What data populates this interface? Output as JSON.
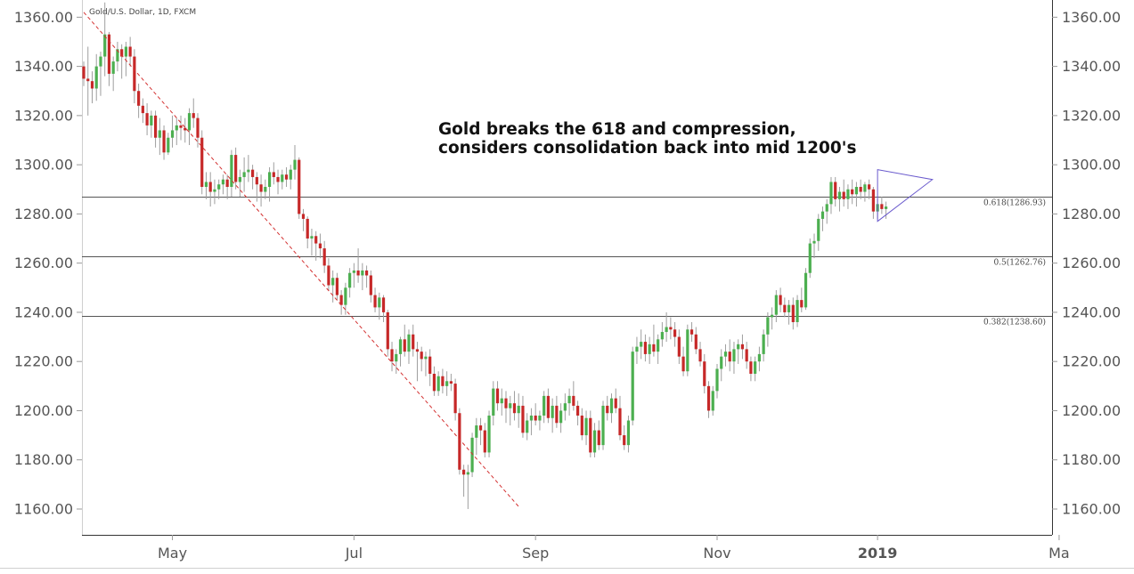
{
  "chart_data": {
    "type": "candlestick",
    "title": "Gold/U.S. Dollar, 1D, FXCM",
    "annotation_lines": [
      "Gold breaks the 618 and compression,",
      "considers consolidation back into mid 1200's"
    ],
    "x_tick_labels": [
      "May",
      "Jul",
      "Sep",
      "Nov",
      "2019",
      "Ma"
    ],
    "y_tick_labels": [
      "1360.00",
      "1340.00",
      "1320.00",
      "1300.00",
      "1280.00",
      "1260.00",
      "1240.00",
      "1220.00",
      "1200.00",
      "1180.00",
      "1160.00"
    ],
    "y_ticks": [
      1360,
      1340,
      1320,
      1300,
      1280,
      1260,
      1240,
      1220,
      1200,
      1180,
      1160
    ],
    "ylim": [
      1149.5,
      1367
    ],
    "fib_levels": [
      {
        "label": "0.618(1286.93)",
        "value": 1286.93
      },
      {
        "label": "0.5(1262.76)",
        "value": 1262.76
      },
      {
        "label": "0.382(1238.60)",
        "value": 1238.6
      }
    ],
    "trendline": {
      "from": {
        "bar": 0,
        "price": 1362
      },
      "to": {
        "bar": 103,
        "price": 1161
      }
    },
    "triangle": [
      {
        "bar": 188,
        "price": 1298
      },
      {
        "bar": 201,
        "price": 1294
      },
      {
        "bar": 188,
        "price": 1277
      }
    ],
    "month_ticks": [
      {
        "label": "May",
        "bar": 21,
        "bold": false
      },
      {
        "label": "Jul",
        "bar": 64,
        "bold": false
      },
      {
        "label": "Sep",
        "bar": 107,
        "bold": false
      },
      {
        "label": "Nov",
        "bar": 150,
        "bold": false
      },
      {
        "label": "2019",
        "bar": 188,
        "bold": true
      },
      {
        "label": "Ma",
        "bar": 231,
        "bold": false
      }
    ],
    "colors": {
      "up": "#4caf50",
      "down": "#c62828",
      "wick": "#9e9e9e",
      "grid": "#555555",
      "trend": "#d32f2f",
      "triangle": "#6a5acd"
    },
    "ohlc": [
      [
        1340,
        1342,
        1332,
        1335
      ],
      [
        1335,
        1348,
        1320,
        1334
      ],
      [
        1334,
        1338,
        1325,
        1331
      ],
      [
        1331,
        1345,
        1326,
        1340
      ],
      [
        1340,
        1346,
        1328,
        1344
      ],
      [
        1344,
        1366,
        1336,
        1353
      ],
      [
        1353,
        1354,
        1332,
        1337
      ],
      [
        1337,
        1344,
        1330,
        1342
      ],
      [
        1342,
        1350,
        1338,
        1347
      ],
      [
        1347,
        1349,
        1335,
        1344
      ],
      [
        1344,
        1350,
        1336,
        1348
      ],
      [
        1348,
        1352,
        1340,
        1344
      ],
      [
        1344,
        1347,
        1325,
        1330
      ],
      [
        1330,
        1333,
        1319,
        1324
      ],
      [
        1324,
        1327,
        1317,
        1321
      ],
      [
        1321,
        1325,
        1312,
        1316
      ],
      [
        1316,
        1322,
        1311,
        1320
      ],
      [
        1320,
        1322,
        1307,
        1311
      ],
      [
        1311,
        1319,
        1304,
        1314
      ],
      [
        1314,
        1316,
        1302,
        1305
      ],
      [
        1305,
        1313,
        1304,
        1311
      ],
      [
        1311,
        1320,
        1307,
        1314
      ],
      [
        1314,
        1319,
        1308,
        1316
      ],
      [
        1316,
        1320,
        1310,
        1315
      ],
      [
        1315,
        1319,
        1309,
        1314
      ],
      [
        1314,
        1323,
        1308,
        1321
      ],
      [
        1321,
        1327,
        1315,
        1319
      ],
      [
        1319,
        1321,
        1307,
        1311
      ],
      [
        1311,
        1314,
        1288,
        1291
      ],
      [
        1291,
        1297,
        1286,
        1293
      ],
      [
        1293,
        1297,
        1283,
        1289
      ],
      [
        1289,
        1294,
        1284,
        1290
      ],
      [
        1290,
        1294,
        1286,
        1292
      ],
      [
        1292,
        1296,
        1288,
        1294
      ],
      [
        1294,
        1296,
        1286,
        1291
      ],
      [
        1291,
        1306,
        1287,
        1304
      ],
      [
        1304,
        1307,
        1290,
        1293
      ],
      [
        1293,
        1298,
        1287,
        1295
      ],
      [
        1295,
        1303,
        1289,
        1297
      ],
      [
        1297,
        1304,
        1293,
        1298
      ],
      [
        1298,
        1300,
        1290,
        1295
      ],
      [
        1295,
        1297,
        1285,
        1292
      ],
      [
        1292,
        1296,
        1283,
        1289
      ],
      [
        1289,
        1294,
        1286,
        1291
      ],
      [
        1291,
        1299,
        1285,
        1297
      ],
      [
        1297,
        1301,
        1292,
        1295
      ],
      [
        1295,
        1298,
        1288,
        1293
      ],
      [
        1293,
        1298,
        1290,
        1296
      ],
      [
        1296,
        1299,
        1291,
        1294
      ],
      [
        1294,
        1300,
        1290,
        1298
      ],
      [
        1298,
        1308,
        1294,
        1302
      ],
      [
        1302,
        1303,
        1278,
        1280
      ],
      [
        1280,
        1282,
        1273,
        1278
      ],
      [
        1278,
        1279,
        1266,
        1270
      ],
      [
        1270,
        1274,
        1263,
        1271
      ],
      [
        1271,
        1273,
        1261,
        1268
      ],
      [
        1268,
        1272,
        1262,
        1266
      ],
      [
        1266,
        1269,
        1256,
        1259
      ],
      [
        1259,
        1262,
        1249,
        1251
      ],
      [
        1251,
        1257,
        1244,
        1254
      ],
      [
        1254,
        1256,
        1245,
        1247
      ],
      [
        1247,
        1249,
        1239,
        1243
      ],
      [
        1243,
        1252,
        1239,
        1250
      ],
      [
        1250,
        1258,
        1246,
        1256
      ],
      [
        1256,
        1260,
        1250,
        1257
      ],
      [
        1257,
        1266,
        1252,
        1255
      ],
      [
        1255,
        1260,
        1249,
        1257
      ],
      [
        1257,
        1259,
        1250,
        1255
      ],
      [
        1255,
        1257,
        1244,
        1247
      ],
      [
        1247,
        1250,
        1240,
        1242
      ],
      [
        1242,
        1248,
        1237,
        1246
      ],
      [
        1246,
        1247,
        1236,
        1240
      ],
      [
        1240,
        1241,
        1222,
        1225
      ],
      [
        1225,
        1228,
        1216,
        1220
      ],
      [
        1220,
        1225,
        1215,
        1223
      ],
      [
        1223,
        1230,
        1218,
        1229
      ],
      [
        1229,
        1235,
        1222,
        1224
      ],
      [
        1224,
        1233,
        1219,
        1231
      ],
      [
        1231,
        1235,
        1222,
        1225
      ],
      [
        1225,
        1228,
        1212,
        1224
      ],
      [
        1224,
        1226,
        1216,
        1221
      ],
      [
        1221,
        1224,
        1214,
        1222
      ],
      [
        1222,
        1225,
        1210,
        1215
      ],
      [
        1215,
        1218,
        1206,
        1208
      ],
      [
        1208,
        1216,
        1206,
        1214
      ],
      [
        1214,
        1217,
        1207,
        1210
      ],
      [
        1210,
        1216,
        1206,
        1212
      ],
      [
        1212,
        1215,
        1208,
        1211
      ],
      [
        1211,
        1213,
        1196,
        1199
      ],
      [
        1199,
        1201,
        1174,
        1176
      ],
      [
        1176,
        1178,
        1165,
        1174
      ],
      [
        1174,
        1178,
        1160,
        1175
      ],
      [
        1175,
        1191,
        1173,
        1189
      ],
      [
        1189,
        1197,
        1182,
        1194
      ],
      [
        1194,
        1197,
        1186,
        1192
      ],
      [
        1192,
        1195,
        1181,
        1183
      ],
      [
        1183,
        1200,
        1181,
        1198
      ],
      [
        1198,
        1212,
        1194,
        1209
      ],
      [
        1209,
        1212,
        1200,
        1203
      ],
      [
        1203,
        1209,
        1198,
        1205
      ],
      [
        1205,
        1208,
        1195,
        1201
      ],
      [
        1201,
        1206,
        1194,
        1203
      ],
      [
        1203,
        1208,
        1196,
        1199
      ],
      [
        1199,
        1207,
        1193,
        1202
      ],
      [
        1202,
        1206,
        1189,
        1191
      ],
      [
        1191,
        1199,
        1188,
        1196
      ],
      [
        1196,
        1201,
        1190,
        1198
      ],
      [
        1198,
        1203,
        1194,
        1196
      ],
      [
        1196,
        1200,
        1192,
        1198
      ],
      [
        1198,
        1208,
        1195,
        1206
      ],
      [
        1206,
        1209,
        1195,
        1197
      ],
      [
        1197,
        1205,
        1191,
        1202
      ],
      [
        1202,
        1206,
        1193,
        1195
      ],
      [
        1195,
        1203,
        1191,
        1200
      ],
      [
        1200,
        1207,
        1196,
        1203
      ],
      [
        1203,
        1209,
        1198,
        1206
      ],
      [
        1206,
        1212,
        1200,
        1202
      ],
      [
        1202,
        1204,
        1194,
        1198
      ],
      [
        1198,
        1201,
        1188,
        1190
      ],
      [
        1190,
        1200,
        1186,
        1197
      ],
      [
        1197,
        1200,
        1181,
        1183
      ],
      [
        1183,
        1195,
        1181,
        1192
      ],
      [
        1192,
        1196,
        1184,
        1186
      ],
      [
        1186,
        1204,
        1184,
        1202
      ],
      [
        1202,
        1206,
        1196,
        1199
      ],
      [
        1199,
        1207,
        1195,
        1205
      ],
      [
        1205,
        1209,
        1199,
        1201
      ],
      [
        1201,
        1206,
        1188,
        1190
      ],
      [
        1190,
        1194,
        1184,
        1186
      ],
      [
        1186,
        1198,
        1183,
        1196
      ],
      [
        1196,
        1226,
        1194,
        1224
      ],
      [
        1224,
        1230,
        1219,
        1226
      ],
      [
        1226,
        1233,
        1221,
        1228
      ],
      [
        1228,
        1231,
        1220,
        1223
      ],
      [
        1223,
        1230,
        1219,
        1227
      ],
      [
        1227,
        1235,
        1222,
        1224
      ],
      [
        1224,
        1231,
        1219,
        1229
      ],
      [
        1229,
        1236,
        1226,
        1232
      ],
      [
        1232,
        1240,
        1228,
        1234
      ],
      [
        1234,
        1238,
        1229,
        1233
      ],
      [
        1233,
        1236,
        1226,
        1230
      ],
      [
        1230,
        1233,
        1219,
        1222
      ],
      [
        1222,
        1226,
        1214,
        1216
      ],
      [
        1216,
        1235,
        1214,
        1233
      ],
      [
        1233,
        1236,
        1228,
        1231
      ],
      [
        1231,
        1234,
        1223,
        1225
      ],
      [
        1225,
        1228,
        1218,
        1220
      ],
      [
        1220,
        1223,
        1207,
        1210
      ],
      [
        1210,
        1212,
        1197,
        1200
      ],
      [
        1200,
        1210,
        1198,
        1208
      ],
      [
        1208,
        1219,
        1205,
        1217
      ],
      [
        1217,
        1225,
        1212,
        1222
      ],
      [
        1222,
        1227,
        1218,
        1224
      ],
      [
        1224,
        1229,
        1216,
        1220
      ],
      [
        1220,
        1228,
        1215,
        1225
      ],
      [
        1225,
        1229,
        1219,
        1227
      ],
      [
        1227,
        1231,
        1221,
        1225
      ],
      [
        1225,
        1228,
        1217,
        1220
      ],
      [
        1220,
        1222,
        1212,
        1215
      ],
      [
        1215,
        1222,
        1212,
        1220
      ],
      [
        1220,
        1226,
        1216,
        1223
      ],
      [
        1223,
        1233,
        1220,
        1231
      ],
      [
        1231,
        1240,
        1226,
        1238
      ],
      [
        1238,
        1242,
        1233,
        1239
      ],
      [
        1239,
        1249,
        1236,
        1247
      ],
      [
        1247,
        1250,
        1240,
        1243
      ],
      [
        1243,
        1246,
        1238,
        1240
      ],
      [
        1240,
        1245,
        1235,
        1243
      ],
      [
        1243,
        1246,
        1233,
        1236
      ],
      [
        1236,
        1247,
        1234,
        1245
      ],
      [
        1245,
        1250,
        1240,
        1242
      ],
      [
        1242,
        1258,
        1241,
        1256
      ],
      [
        1256,
        1270,
        1254,
        1268
      ],
      [
        1268,
        1272,
        1262,
        1269
      ],
      [
        1269,
        1280,
        1265,
        1278
      ],
      [
        1278,
        1283,
        1273,
        1281
      ],
      [
        1281,
        1286,
        1276,
        1284
      ],
      [
        1284,
        1295,
        1280,
        1293
      ],
      [
        1293,
        1295,
        1283,
        1286
      ],
      [
        1286,
        1291,
        1281,
        1289
      ],
      [
        1289,
        1294,
        1283,
        1286
      ],
      [
        1286,
        1292,
        1282,
        1290
      ],
      [
        1290,
        1294,
        1284,
        1288
      ],
      [
        1288,
        1293,
        1283,
        1291
      ],
      [
        1291,
        1294,
        1286,
        1289
      ],
      [
        1289,
        1293,
        1285,
        1292
      ],
      [
        1292,
        1294,
        1286,
        1290
      ],
      [
        1290,
        1291,
        1278,
        1281
      ],
      [
        1281,
        1286,
        1278,
        1284
      ],
      [
        1284,
        1287,
        1280,
        1282
      ],
      [
        1282,
        1285,
        1278,
        1283
      ]
    ],
    "first_bar_x": 94,
    "bar_spacing": 4.74
  }
}
